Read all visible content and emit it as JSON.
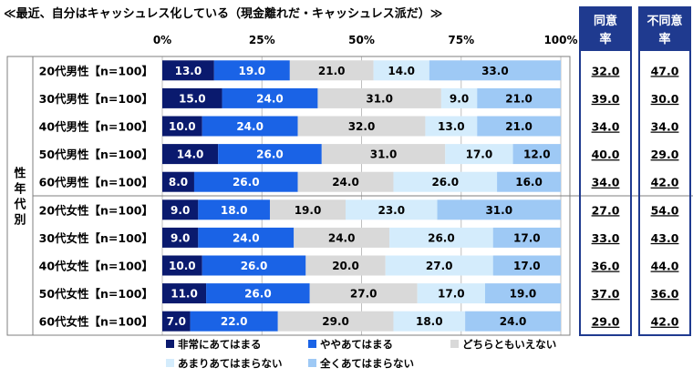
{
  "title": "≪最近、自分はキャッシュレス化している（現金離れだ・キャッシュレス派だ）≫",
  "colors": {
    "series": [
      "#0a1a6e",
      "#1a63e6",
      "#d9d9d9",
      "#d4ecfc",
      "#9ec9f5"
    ],
    "header_bg": "#1f3a8f",
    "frame": "#1f3a8f"
  },
  "chart_data": {
    "type": "bar",
    "orientation": "horizontal",
    "stacked": "percent",
    "title": "≪最近、自分はキャッシュレス化している（現金離れだ・キャッシュレス派だ）≫",
    "x_ticks": [
      "0%",
      "25%",
      "50%",
      "75%",
      "100%"
    ],
    "xlim": [
      0,
      100
    ],
    "group_label": "性年代別",
    "legend_position": "bottom",
    "categories": [
      "20代男性【n=100】",
      "30代男性【n=100】",
      "40代男性【n=100】",
      "50代男性【n=100】",
      "60代男性【n=100】",
      "20代女性【n=100】",
      "30代女性【n=100】",
      "40代女性【n=100】",
      "50代女性【n=100】",
      "60代女性【n=100】"
    ],
    "series": [
      {
        "name": "非常にあてはまる",
        "values": [
          13.0,
          15.0,
          10.0,
          14.0,
          8.0,
          9.0,
          9.0,
          10.0,
          11.0,
          7.0
        ]
      },
      {
        "name": "ややあてはまる",
        "values": [
          19.0,
          24.0,
          24.0,
          26.0,
          26.0,
          18.0,
          24.0,
          26.0,
          26.0,
          22.0
        ]
      },
      {
        "name": "どちらともいえない",
        "values": [
          21.0,
          31.0,
          32.0,
          31.0,
          24.0,
          19.0,
          24.0,
          20.0,
          27.0,
          29.0
        ]
      },
      {
        "name": "あまりあてはまらない",
        "values": [
          14.0,
          9.0,
          13.0,
          17.0,
          26.0,
          23.0,
          26.0,
          27.0,
          17.0,
          18.0
        ]
      },
      {
        "name": "全くあてはまらない",
        "values": [
          33.0,
          21.0,
          21.0,
          12.0,
          16.0,
          31.0,
          17.0,
          17.0,
          19.0,
          24.0
        ]
      }
    ],
    "summary_columns": [
      {
        "header_line1": "同意",
        "header_line2": "率",
        "values": [
          "32.0",
          "39.0",
          "34.0",
          "40.0",
          "34.0",
          "27.0",
          "33.0",
          "36.0",
          "37.0",
          "29.0"
        ]
      },
      {
        "header_line1": "不同意",
        "header_line2": "率",
        "values": [
          "47.0",
          "30.0",
          "34.0",
          "29.0",
          "42.0",
          "54.0",
          "43.0",
          "44.0",
          "36.0",
          "42.0"
        ]
      }
    ]
  }
}
